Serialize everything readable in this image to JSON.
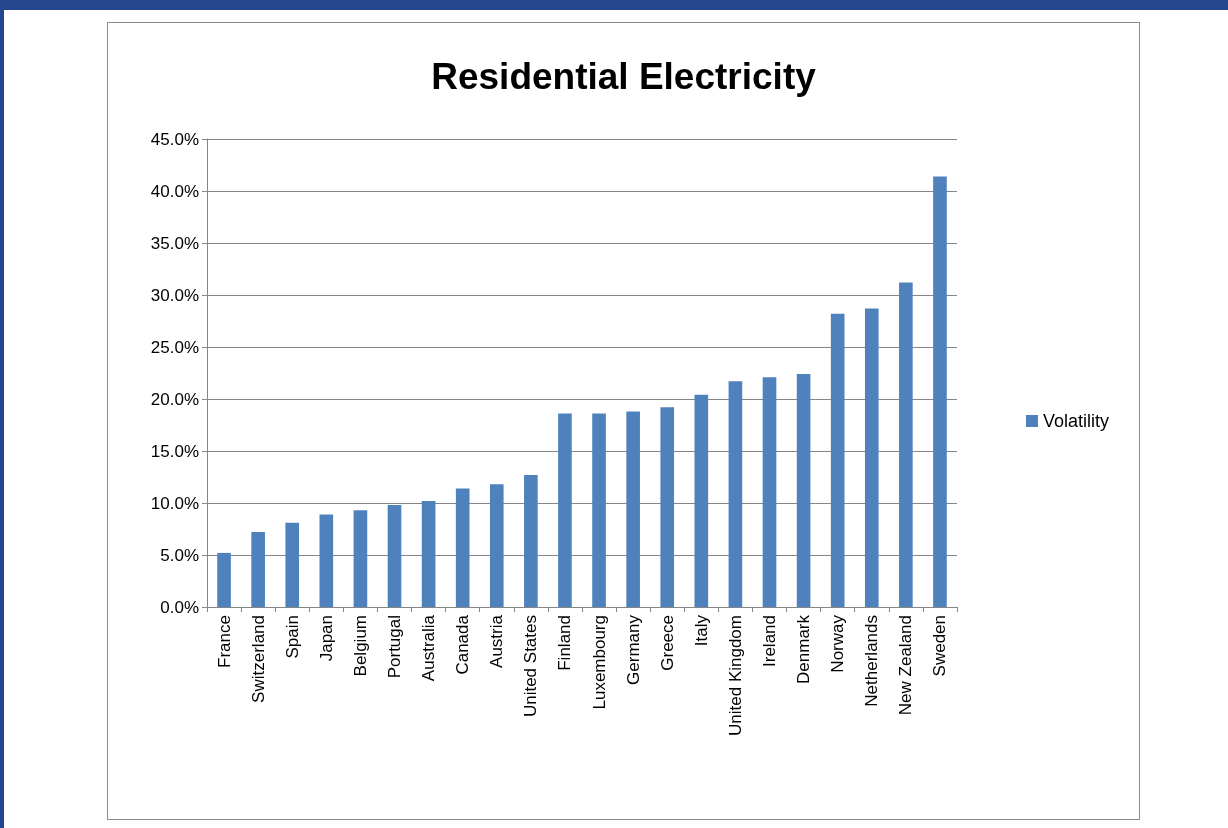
{
  "chart_data": {
    "type": "bar",
    "title": "Residential Electricity",
    "categories": [
      "France",
      "Switzerland",
      "Spain",
      "Japan",
      "Belgium",
      "Portugal",
      "Australia",
      "Canada",
      "Austria",
      "United States",
      "Finland",
      "Luxembourg",
      "Germany",
      "Greece",
      "Italy",
      "United Kingdom",
      "Ireland",
      "Denmark",
      "Norway",
      "Netherlands",
      "New Zealand",
      "Sweden"
    ],
    "series": [
      {
        "name": "Volatility",
        "color": "#4f81bd",
        "values": [
          5.2,
          7.2,
          8.1,
          8.9,
          9.3,
          9.8,
          10.2,
          11.4,
          11.8,
          12.7,
          18.6,
          18.6,
          18.8,
          19.2,
          20.4,
          21.7,
          22.1,
          22.4,
          28.2,
          28.7,
          31.2,
          41.4
        ]
      }
    ],
    "ylim": [
      0,
      45
    ],
    "yticks": [
      {
        "value": 0,
        "label": "0.0%"
      },
      {
        "value": 5,
        "label": "5.0%"
      },
      {
        "value": 10,
        "label": "10.0%"
      },
      {
        "value": 15,
        "label": "15.0%"
      },
      {
        "value": 20,
        "label": "20.0%"
      },
      {
        "value": 25,
        "label": "25.0%"
      },
      {
        "value": 30,
        "label": "30.0%"
      },
      {
        "value": 35,
        "label": "35.0%"
      },
      {
        "value": 40,
        "label": "40.0%"
      },
      {
        "value": 45,
        "label": "45.0%"
      }
    ],
    "grid": "y",
    "legend": "right"
  }
}
